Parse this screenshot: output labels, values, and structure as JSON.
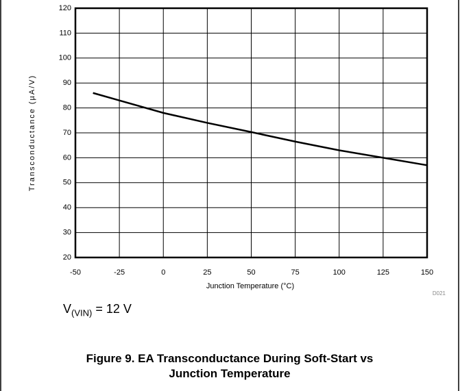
{
  "chart_data": {
    "type": "line",
    "x_label": "Junction Temperature (°C)",
    "y_label": "Transconductance (µA/V)",
    "x": [
      -40,
      -25,
      0,
      25,
      50,
      75,
      100,
      125,
      150
    ],
    "series": [
      {
        "name": "Transconductance",
        "color": "#000000",
        "values": [
          86,
          83,
          78,
          74,
          70.3,
          66.5,
          63,
          60,
          57
        ]
      }
    ],
    "xlim": [
      -50,
      150
    ],
    "xticks": [
      -50,
      -25,
      0,
      25,
      50,
      75,
      100,
      125,
      150
    ],
    "ylim": [
      20,
      120
    ],
    "yticks": [
      20,
      30,
      40,
      50,
      60,
      70,
      80,
      90,
      100,
      110,
      120
    ],
    "grid": true,
    "code": "D021",
    "annotation": {
      "main": "V",
      "subscript": "(VIN)",
      "rest": "= 12 V"
    },
    "caption": "Figure 9. EA Transconductance During Soft-Start vs Junction Temperature"
  }
}
